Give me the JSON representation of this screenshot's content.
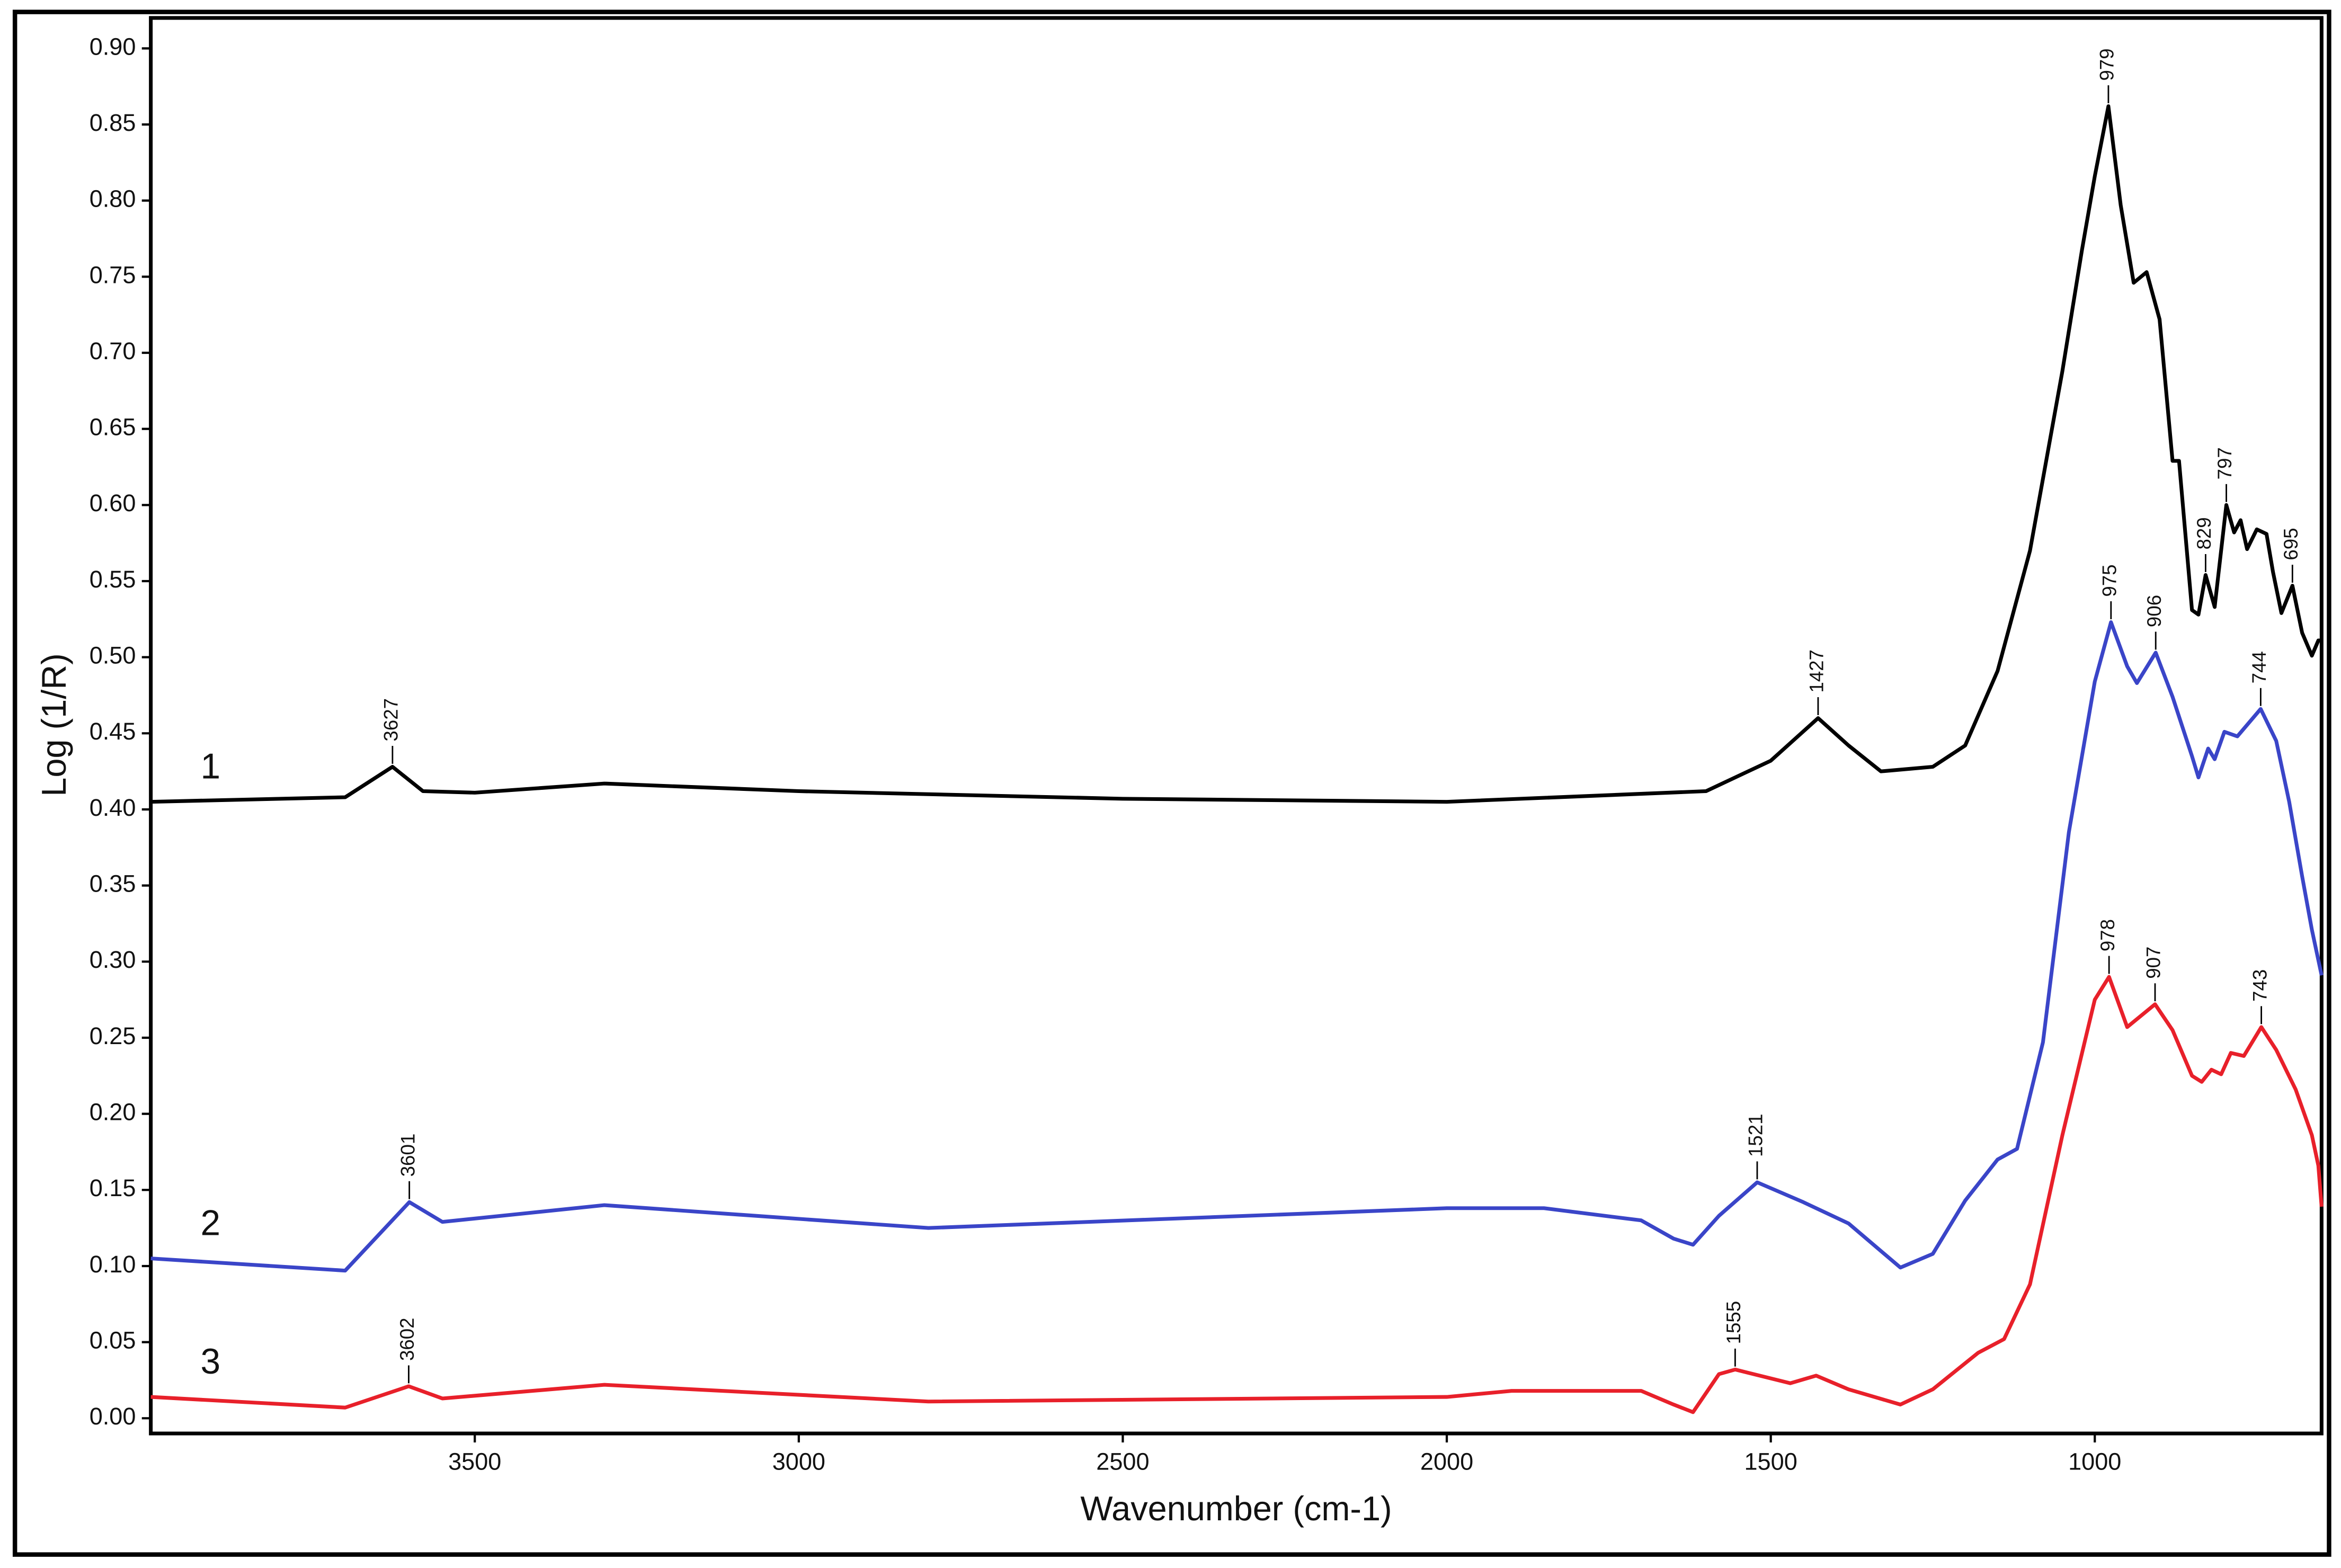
{
  "chart_data": {
    "type": "line",
    "xlabel": "Wavenumber (cm-1)",
    "ylabel": "Log (1/R)",
    "xlim": [
      4000,
      650
    ],
    "ylim": [
      -0.01,
      0.92
    ],
    "xticks": [
      3500,
      3000,
      2500,
      2000,
      1500,
      1000
    ],
    "yticks": [
      {
        "value": 0,
        "label": "0.00"
      },
      {
        "value": 0.05,
        "label": "0.05"
      },
      {
        "value": 0.1,
        "label": "0.10"
      },
      {
        "value": 0.15,
        "label": "0.15"
      },
      {
        "value": 0.2,
        "label": "0.20"
      },
      {
        "value": 0.25,
        "label": "0.25"
      },
      {
        "value": 0.3,
        "label": "0.30"
      },
      {
        "value": 0.35,
        "label": "0.35"
      },
      {
        "value": 0.4,
        "label": "0.40"
      },
      {
        "value": 0.45,
        "label": "0.45"
      },
      {
        "value": 0.5,
        "label": "0.50"
      },
      {
        "value": 0.55,
        "label": "0.55"
      },
      {
        "value": 0.6,
        "label": "0.60"
      },
      {
        "value": 0.65,
        "label": "0.65"
      },
      {
        "value": 0.7,
        "label": "0.70"
      },
      {
        "value": 0.75,
        "label": "0.75"
      },
      {
        "value": 0.8,
        "label": "0.80"
      },
      {
        "value": 0.85,
        "label": "0.85"
      },
      {
        "value": 0.9,
        "label": "0.90"
      }
    ],
    "series": [
      {
        "name": "1",
        "color": "#000000",
        "x": [
          4000,
          3700,
          3627,
          3580,
          3500,
          3300,
          3000,
          2500,
          2000,
          1600,
          1500,
          1427,
          1380,
          1330,
          1250,
          1200,
          1150,
          1100,
          1050,
          1020,
          1000,
          979,
          960,
          940,
          920,
          900,
          880,
          870,
          860,
          850,
          840,
          829,
          815,
          797,
          785,
          775,
          765,
          750,
          735,
          725,
          712,
          695,
          680,
          665,
          655,
          650
        ],
        "values": [
          0.405,
          0.408,
          0.428,
          0.412,
          0.411,
          0.417,
          0.412,
          0.407,
          0.405,
          0.412,
          0.432,
          0.46,
          0.442,
          0.425,
          0.428,
          0.442,
          0.491,
          0.57,
          0.688,
          0.767,
          0.816,
          0.862,
          0.797,
          0.746,
          0.753,
          0.722,
          0.629,
          0.629,
          0.58,
          0.531,
          0.528,
          0.554,
          0.533,
          0.6,
          0.582,
          0.59,
          0.571,
          0.584,
          0.581,
          0.556,
          0.529,
          0.547,
          0.516,
          0.501,
          0.511,
          0.511
        ],
        "peaks": [
          3627,
          1427,
          979,
          829,
          797,
          695
        ]
      },
      {
        "name": "2",
        "color": "#3a45c8",
        "x": [
          4000,
          3700,
          3601,
          3550,
          3300,
          2800,
          2000,
          1850,
          1700,
          1650,
          1620,
          1580,
          1521,
          1450,
          1380,
          1300,
          1250,
          1200,
          1150,
          1120,
          1080,
          1040,
          1000,
          975,
          950,
          935,
          906,
          880,
          850,
          840,
          825,
          815,
          800,
          780,
          744,
          720,
          700,
          680,
          665,
          650
        ],
        "values": [
          0.105,
          0.097,
          0.142,
          0.129,
          0.14,
          0.125,
          0.138,
          0.138,
          0.13,
          0.118,
          0.114,
          0.133,
          0.155,
          0.142,
          0.128,
          0.099,
          0.108,
          0.143,
          0.17,
          0.177,
          0.247,
          0.385,
          0.484,
          0.523,
          0.494,
          0.483,
          0.503,
          0.474,
          0.435,
          0.421,
          0.44,
          0.433,
          0.451,
          0.448,
          0.466,
          0.445,
          0.405,
          0.356,
          0.321,
          0.291
        ],
        "peaks": [
          3601,
          1521,
          975,
          906,
          744
        ]
      },
      {
        "name": "3",
        "color": "#e8202a",
        "x": [
          4000,
          3700,
          3602,
          3550,
          3300,
          2800,
          2000,
          1900,
          1700,
          1650,
          1620,
          1580,
          1555,
          1470,
          1430,
          1380,
          1300,
          1250,
          1180,
          1140,
          1100,
          1050,
          1000,
          978,
          950,
          907,
          880,
          850,
          835,
          820,
          805,
          790,
          770,
          743,
          720,
          690,
          665,
          655,
          650
        ],
        "values": [
          0.014,
          0.007,
          0.021,
          0.013,
          0.022,
          0.011,
          0.014,
          0.018,
          0.018,
          0.009,
          0.004,
          0.029,
          0.032,
          0.023,
          0.028,
          0.019,
          0.009,
          0.019,
          0.043,
          0.052,
          0.088,
          0.186,
          0.275,
          0.29,
          0.257,
          0.272,
          0.255,
          0.225,
          0.221,
          0.229,
          0.226,
          0.24,
          0.238,
          0.257,
          0.242,
          0.216,
          0.186,
          0.166,
          0.139
        ],
        "peaks": [
          3602,
          1555,
          978,
          907,
          743
        ]
      }
    ]
  }
}
